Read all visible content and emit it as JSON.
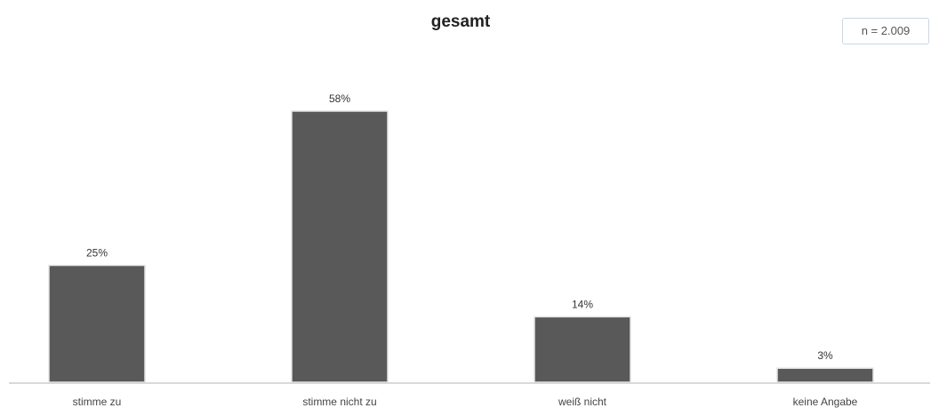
{
  "chart_data": {
    "type": "bar",
    "title": "gesamt",
    "n_label": "n = 2.009",
    "categories": [
      "stimme zu",
      "stimme nicht zu",
      "weiß nicht",
      "keine Angabe"
    ],
    "values": [
      25,
      58,
      14,
      3
    ],
    "value_labels": [
      "25%",
      "58%",
      "14%",
      "3%"
    ],
    "unit": "%",
    "xlabel": "",
    "ylabel": "",
    "ylim": [
      0,
      58
    ],
    "grid": false,
    "legend": "none",
    "colors": {
      "bar": "#595959",
      "bar_edge": "#e4e4e4",
      "baseline": "#d9d9d9"
    }
  }
}
